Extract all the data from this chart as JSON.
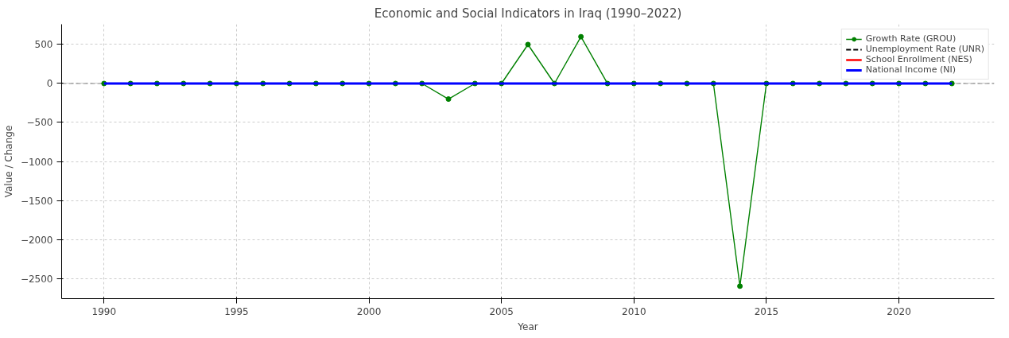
{
  "chart_data": {
    "type": "line",
    "title": "Economic and Social Indicators in Iraq (1990–2022)",
    "xlabel": "Year",
    "ylabel": "Value / Change",
    "x": [
      1990,
      1991,
      1992,
      1993,
      1994,
      1995,
      1996,
      1997,
      1998,
      1999,
      2000,
      2001,
      2002,
      2003,
      2004,
      2005,
      2006,
      2007,
      2008,
      2009,
      2010,
      2011,
      2012,
      2013,
      2014,
      2015,
      2016,
      2017,
      2018,
      2019,
      2020,
      2021,
      2022
    ],
    "series": [
      {
        "name": "Growth Rate (GROU)",
        "color": "#008000",
        "marker": "circle",
        "line_style": "solid",
        "values": [
          0,
          0,
          0,
          0,
          0,
          0,
          0,
          0,
          0,
          0,
          0,
          0,
          0,
          -200,
          0,
          0,
          500,
          0,
          600,
          0,
          0,
          0,
          0,
          0,
          -2600,
          0,
          0,
          0,
          0,
          0,
          0,
          0,
          0
        ]
      },
      {
        "name": "Unemployment Rate (UNR)",
        "color": "#000000",
        "marker": "none",
        "line_style": "dashed",
        "values": [
          null,
          null,
          null,
          null,
          null,
          null,
          null,
          null,
          null,
          null,
          null,
          null,
          null,
          null,
          null,
          null,
          null,
          null,
          null,
          null,
          null,
          null,
          null,
          null,
          null,
          null,
          null,
          null,
          null,
          null,
          null,
          null,
          null
        ]
      },
      {
        "name": "School Enrollment (NES)",
        "color": "#ff0000",
        "marker": "none",
        "line_style": "solid",
        "values": [
          null,
          null,
          null,
          null,
          null,
          null,
          null,
          null,
          null,
          null,
          null,
          null,
          null,
          null,
          null,
          null,
          null,
          null,
          null,
          null,
          null,
          null,
          null,
          null,
          null,
          null,
          null,
          null,
          null,
          null,
          null,
          null,
          null
        ]
      },
      {
        "name": "National Income (NI)",
        "color": "#0000ff",
        "marker": "none",
        "line_style": "solid",
        "values": [
          0,
          0,
          0,
          0,
          0,
          0,
          0,
          0,
          0,
          0,
          0,
          0,
          0,
          0,
          0,
          0,
          0,
          0,
          0,
          0,
          0,
          0,
          0,
          0,
          0,
          0,
          0,
          0,
          0,
          0,
          0,
          0,
          0
        ]
      }
    ],
    "ref_lines": [
      {
        "axis": "y",
        "value": 0,
        "color": "#808080",
        "line_style": "dashed"
      }
    ],
    "xlim": [
      1988.4,
      2023.6
    ],
    "ylim": [
      -2760,
      760
    ],
    "xticks": [
      1990,
      1995,
      2000,
      2005,
      2010,
      2015,
      2020
    ],
    "yticks": [
      -2500,
      -2000,
      -1500,
      -1000,
      -500,
      0,
      500
    ],
    "grid": true,
    "legend": "top right"
  }
}
